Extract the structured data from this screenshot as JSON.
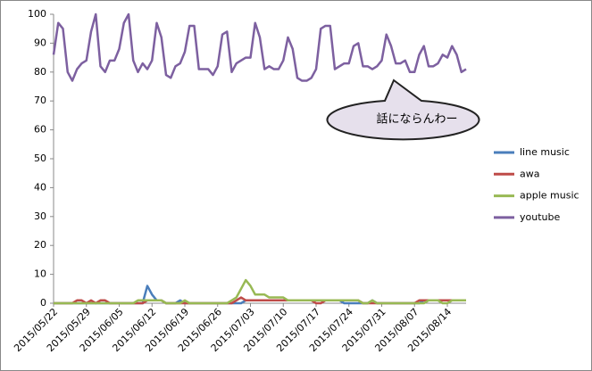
{
  "chart_data": {
    "type": "line",
    "annotation": "話にならんわー",
    "categories": [
      "2015/05/22",
      null,
      null,
      null,
      null,
      null,
      null,
      "2015/05/29",
      null,
      null,
      null,
      null,
      null,
      null,
      "2015/06/05",
      null,
      null,
      null,
      null,
      null,
      null,
      "2015/06/12",
      null,
      null,
      null,
      null,
      null,
      null,
      "2015/06/19",
      null,
      null,
      null,
      null,
      null,
      null,
      "2015/06/26",
      null,
      null,
      null,
      null,
      null,
      null,
      "2015/07/03",
      null,
      null,
      null,
      null,
      null,
      null,
      "2015/07/10",
      null,
      null,
      null,
      null,
      null,
      null,
      "2015/07/17",
      null,
      null,
      null,
      null,
      null,
      null,
      "2015/07/24",
      null,
      null,
      null,
      null,
      null,
      null,
      "2015/07/31",
      null,
      null,
      null,
      null,
      null,
      null,
      "2015/08/07",
      null,
      null,
      null,
      null,
      null,
      null,
      "2015/08/14",
      null,
      null,
      null,
      null
    ],
    "series": [
      {
        "name": "line music",
        "color": "#4a7ebb",
        "values": [
          0,
          0,
          0,
          0,
          0,
          0,
          0,
          0,
          0,
          0,
          0,
          0,
          0,
          0,
          0,
          0,
          0,
          0,
          0,
          0,
          6,
          3,
          1,
          1,
          0,
          0,
          0,
          1,
          0,
          0,
          0,
          0,
          0,
          0,
          0,
          0,
          0,
          0,
          0,
          0,
          0,
          1,
          1,
          1,
          1,
          1,
          1,
          1,
          1,
          1,
          1,
          1,
          1,
          1,
          1,
          1,
          1,
          1,
          1,
          1,
          1,
          1,
          0,
          0,
          0,
          0,
          0,
          0,
          1,
          0,
          0,
          0,
          0,
          0,
          0,
          0,
          0,
          0,
          0,
          1,
          1,
          1,
          1,
          1,
          1,
          1,
          1,
          1,
          1
        ]
      },
      {
        "name": "awa",
        "color": "#be4b48",
        "values": [
          0,
          0,
          0,
          0,
          0,
          1,
          1,
          0,
          1,
          0,
          1,
          1,
          0,
          0,
          0,
          0,
          0,
          0,
          0,
          0,
          1,
          1,
          1,
          1,
          0,
          0,
          0,
          0,
          0,
          0,
          0,
          0,
          0,
          0,
          0,
          0,
          0,
          0,
          0,
          1,
          2,
          1,
          1,
          1,
          1,
          1,
          1,
          1,
          1,
          1,
          1,
          1,
          1,
          1,
          1,
          1,
          0,
          0,
          1,
          1,
          1,
          1,
          1,
          1,
          1,
          1,
          0,
          0,
          0,
          0,
          0,
          0,
          0,
          0,
          0,
          0,
          0,
          0,
          1,
          1,
          1,
          1,
          1,
          1,
          1,
          1,
          1,
          1,
          1
        ]
      },
      {
        "name": "apple music",
        "color": "#98b954",
        "values": [
          0,
          0,
          0,
          0,
          0,
          0,
          0,
          0,
          0,
          0,
          0,
          0,
          0,
          0,
          0,
          0,
          0,
          0,
          1,
          1,
          1,
          1,
          1,
          1,
          0,
          0,
          0,
          0,
          1,
          0,
          0,
          0,
          0,
          0,
          0,
          0,
          0,
          0,
          1,
          2,
          5,
          8,
          6,
          3,
          3,
          3,
          2,
          2,
          2,
          2,
          1,
          1,
          1,
          1,
          1,
          1,
          1,
          1,
          1,
          1,
          1,
          1,
          1,
          1,
          1,
          1,
          0,
          0,
          1,
          0,
          0,
          0,
          0,
          0,
          0,
          0,
          0,
          0,
          0,
          0,
          1,
          1,
          1,
          0,
          0,
          1,
          1,
          1,
          1
        ]
      },
      {
        "name": "youtube",
        "color": "#7d60a0",
        "values": [
          86,
          97,
          95,
          80,
          77,
          81,
          83,
          84,
          94,
          100,
          82,
          80,
          84,
          84,
          88,
          97,
          100,
          84,
          80,
          83,
          81,
          84,
          97,
          92,
          79,
          78,
          82,
          83,
          87,
          96,
          96,
          81,
          81,
          81,
          79,
          82,
          93,
          94,
          80,
          83,
          84,
          85,
          85,
          97,
          92,
          81,
          82,
          81,
          81,
          84,
          92,
          88,
          78,
          77,
          77,
          78,
          81,
          95,
          96,
          96,
          81,
          82,
          83,
          83,
          89,
          90,
          82,
          82,
          81,
          82,
          84,
          93,
          89,
          83,
          83,
          84,
          80,
          80,
          86,
          89,
          82,
          82,
          83,
          86,
          85,
          89,
          86,
          80,
          81
        ]
      }
    ],
    "ylim": [
      0,
      100
    ],
    "yticks": [
      0,
      10,
      20,
      30,
      40,
      50,
      60,
      70,
      80,
      90,
      100
    ]
  }
}
